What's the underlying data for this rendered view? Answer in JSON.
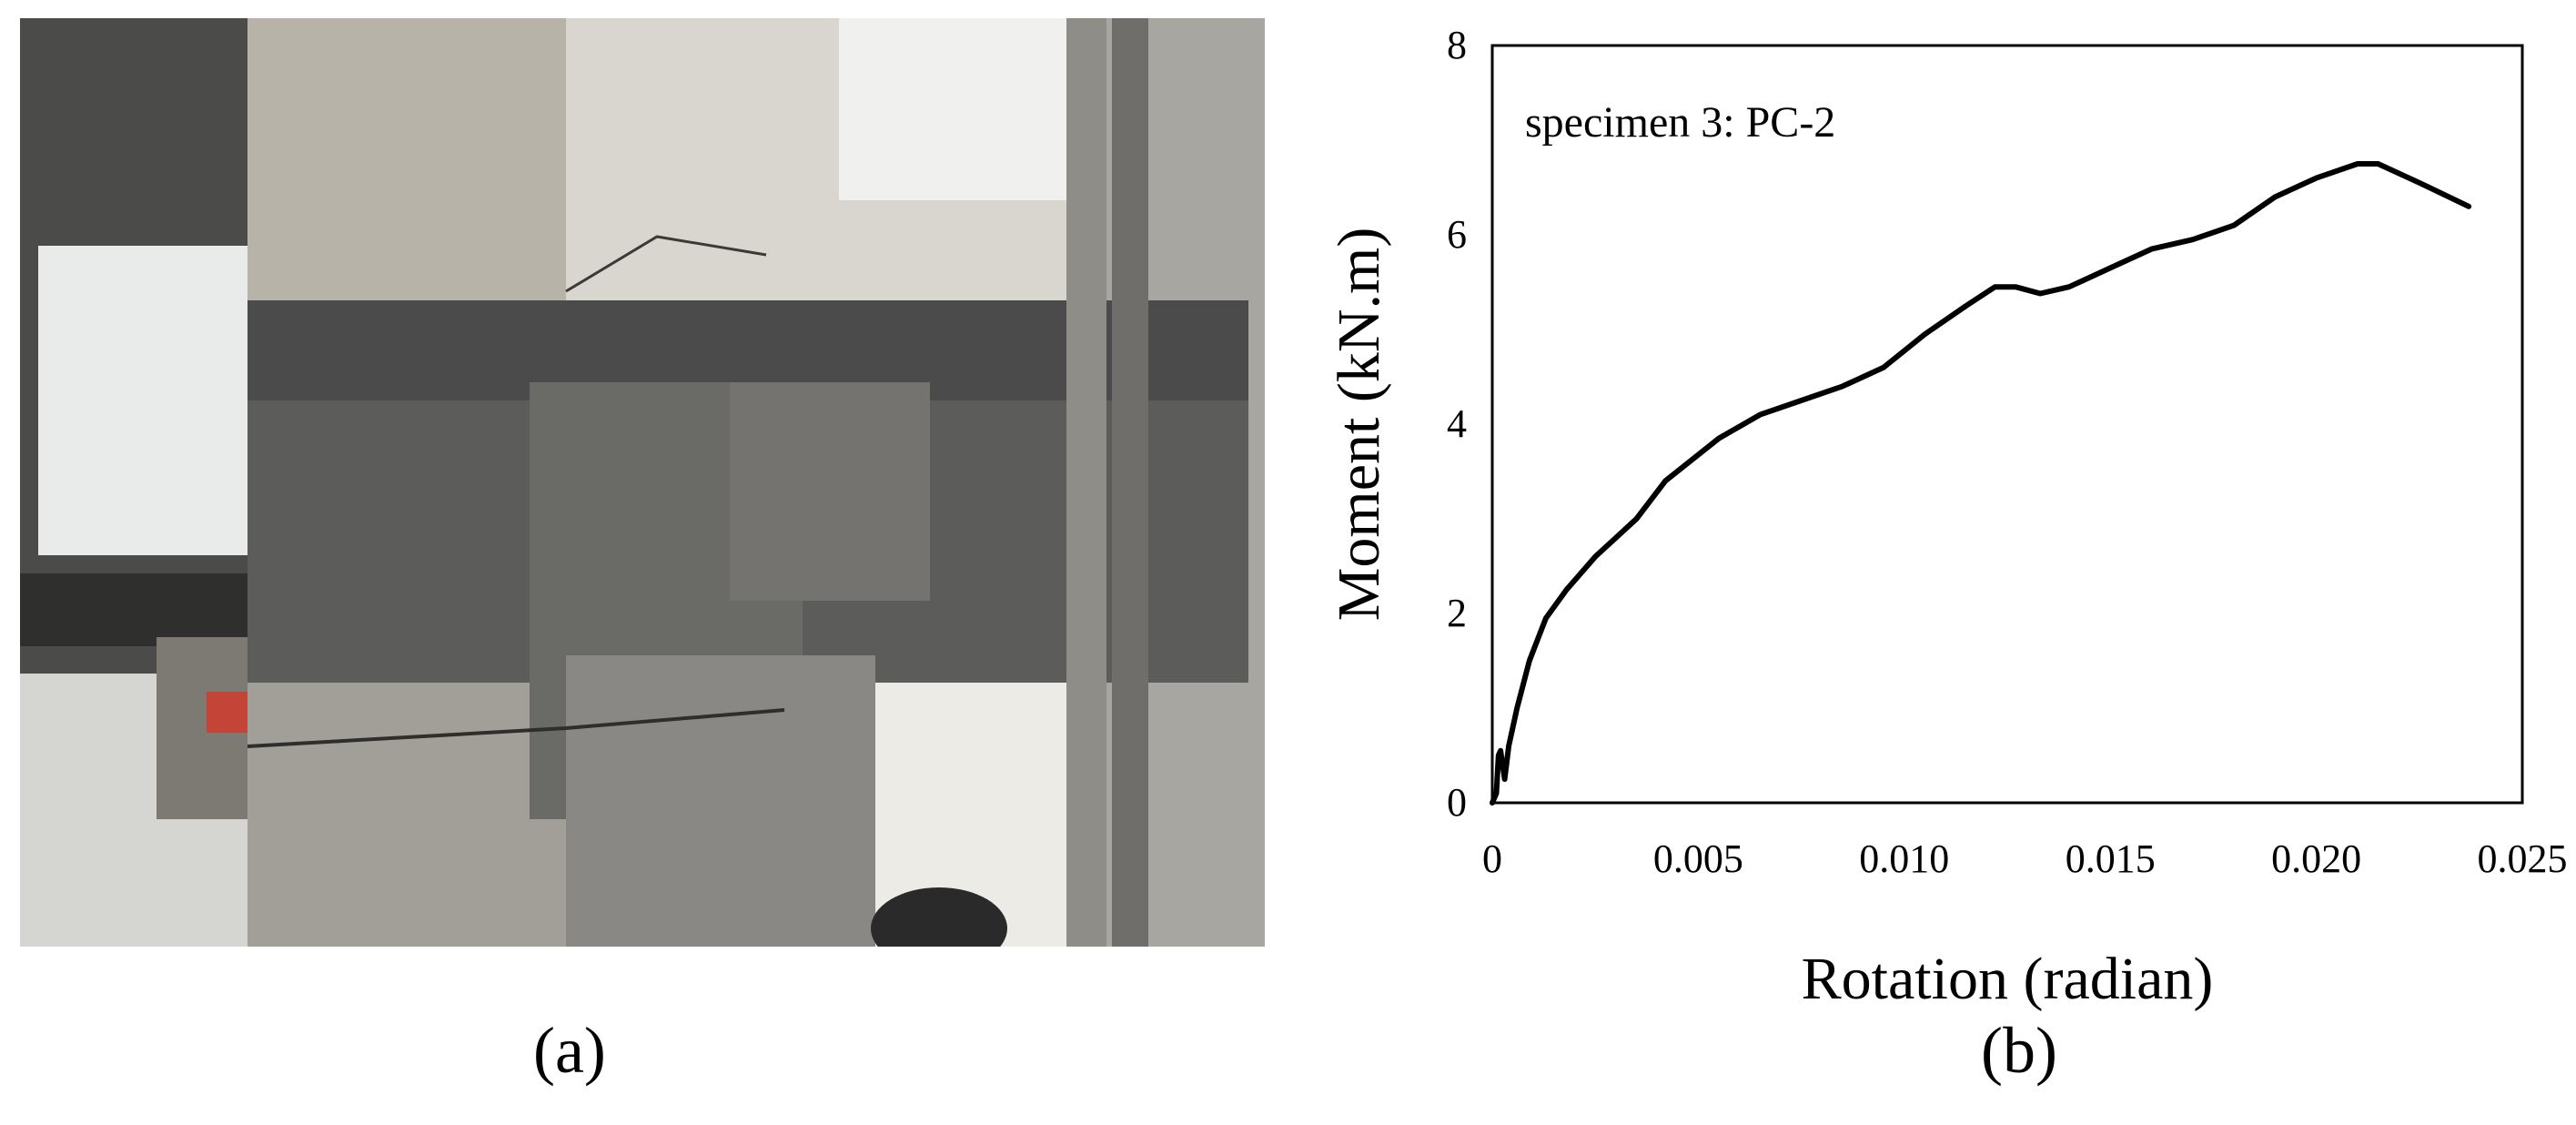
{
  "panels": {
    "left_caption": "(a)",
    "right_caption": "(b)"
  },
  "photo": {
    "description_icon": "photo-of-specimen"
  },
  "chart_data": {
    "type": "line",
    "title": "",
    "annotation": "specimen 3: PC-2",
    "xlabel": "Rotation (radian)",
    "ylabel": "Moment (kN.m)",
    "xlim": [
      0,
      0.025
    ],
    "ylim": [
      0,
      8
    ],
    "x_ticks": [
      "0",
      "0.005",
      "0.010",
      "0.015",
      "0.020",
      "0.025"
    ],
    "y_ticks": [
      "0",
      "2",
      "4",
      "6",
      "8"
    ],
    "grid": false,
    "legend": "none",
    "series": [
      {
        "color": "#000000",
        "points": [
          [
            0.0,
            0.0
          ],
          [
            0.0001,
            0.1
          ],
          [
            0.00015,
            0.5
          ],
          [
            0.0002,
            0.55
          ],
          [
            0.0003,
            0.25
          ],
          [
            0.0004,
            0.6
          ],
          [
            0.0006,
            1.0
          ],
          [
            0.0009,
            1.5
          ],
          [
            0.0013,
            1.95
          ],
          [
            0.0018,
            2.25
          ],
          [
            0.0025,
            2.6
          ],
          [
            0.0035,
            3.0
          ],
          [
            0.0042,
            3.4
          ],
          [
            0.0055,
            3.85
          ],
          [
            0.0065,
            4.1
          ],
          [
            0.0075,
            4.25
          ],
          [
            0.0085,
            4.4
          ],
          [
            0.0095,
            4.6
          ],
          [
            0.0105,
            4.95
          ],
          [
            0.0115,
            5.25
          ],
          [
            0.0122,
            5.45
          ],
          [
            0.0127,
            5.45
          ],
          [
            0.0133,
            5.38
          ],
          [
            0.014,
            5.45
          ],
          [
            0.015,
            5.65
          ],
          [
            0.016,
            5.85
          ],
          [
            0.017,
            5.95
          ],
          [
            0.018,
            6.1
          ],
          [
            0.019,
            6.4
          ],
          [
            0.02,
            6.6
          ],
          [
            0.021,
            6.75
          ],
          [
            0.0215,
            6.75
          ],
          [
            0.0225,
            6.55
          ],
          [
            0.0237,
            6.3
          ]
        ]
      }
    ]
  }
}
